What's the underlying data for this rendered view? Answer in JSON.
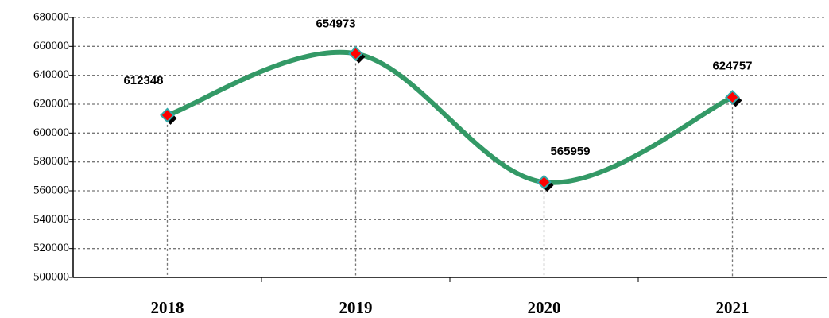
{
  "chart_data": {
    "type": "line",
    "categories": [
      "2018",
      "2019",
      "2020",
      "2021"
    ],
    "series": [
      {
        "color": "#339966",
        "values": [
          612348,
          654973,
          565959,
          624757
        ]
      }
    ],
    "ylim": [
      500000,
      680000
    ],
    "yticks": [
      500000,
      520000,
      540000,
      560000,
      580000,
      600000,
      620000,
      640000,
      660000,
      680000
    ],
    "grid": true
  }
}
